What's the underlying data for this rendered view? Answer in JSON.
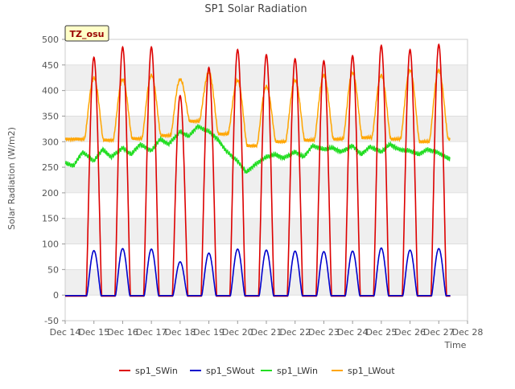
{
  "chart_data": {
    "type": "line",
    "title": "SP1 Solar Radiation",
    "xlabel": "Time",
    "ylabel": "Solar Radiation (W/m2)",
    "site_label": "TZ_osu",
    "xlim": [
      14,
      28
    ],
    "ylim": [
      -50,
      500
    ],
    "x_ticks": [
      14,
      15,
      16,
      17,
      18,
      19,
      20,
      21,
      22,
      23,
      24,
      25,
      26,
      27,
      28
    ],
    "x_tick_labels": [
      "Dec 14",
      "Dec 15",
      "Dec 16",
      "Dec 17",
      "Dec 18",
      "Dec 19",
      "Dec 20",
      "Dec 21",
      "Dec 22",
      "Dec 23",
      "Dec 24",
      "Dec 25",
      "Dec 26",
      "Dec 27",
      "Dec 28"
    ],
    "y_ticks": [
      -50,
      0,
      50,
      100,
      150,
      200,
      250,
      300,
      350,
      400,
      450,
      500
    ],
    "y_tick_labels": [
      "-50",
      "0",
      "50",
      "100",
      "150",
      "200",
      "250",
      "300",
      "350",
      "400",
      "450",
      "500"
    ],
    "grid": "horizontal bands",
    "legend_position": "bottom",
    "days": [
      15,
      16,
      17,
      18,
      19,
      20,
      21,
      22,
      23,
      24,
      25,
      26,
      27
    ],
    "series": [
      {
        "name": "sp1_SWin",
        "color": "#dd0000",
        "night_value": -2,
        "daily_peak": [
          465,
          485,
          485,
          390,
          445,
          480,
          470,
          462,
          458,
          468,
          488,
          480,
          490
        ]
      },
      {
        "name": "sp1_SWout",
        "color": "#0000cc",
        "night_value": -1,
        "daily_peak": [
          87,
          91,
          90,
          65,
          82,
          90,
          88,
          86,
          85,
          86,
          92,
          88,
          91
        ]
      },
      {
        "name": "sp1_LWin",
        "color": "#22dd22",
        "x": [
          14.0,
          14.3,
          14.6,
          15.0,
          15.3,
          15.6,
          16.0,
          16.3,
          16.6,
          17.0,
          17.3,
          17.6,
          18.0,
          18.3,
          18.6,
          19.0,
          19.3,
          19.6,
          20.0,
          20.3,
          20.6,
          21.0,
          21.3,
          21.6,
          22.0,
          22.3,
          22.6,
          23.0,
          23.3,
          23.6,
          24.0,
          24.3,
          24.6,
          25.0,
          25.3,
          25.6,
          26.0,
          26.3,
          26.6,
          27.0,
          27.3,
          27.5
        ],
        "values": [
          258,
          253,
          280,
          262,
          285,
          270,
          288,
          275,
          295,
          282,
          305,
          295,
          320,
          310,
          330,
          320,
          305,
          282,
          262,
          240,
          255,
          270,
          275,
          268,
          280,
          270,
          292,
          285,
          288,
          280,
          292,
          275,
          290,
          280,
          295,
          285,
          282,
          275,
          285,
          278,
          268,
          265
        ]
      },
      {
        "name": "sp1_LWout",
        "color": "#ffa500",
        "night_base": [
          305,
          303,
          306,
          312,
          340,
          315,
          292,
          300,
          303,
          305,
          308,
          305,
          300,
          305
        ],
        "daily_peak": [
          425,
          422,
          430,
          422,
          435,
          420,
          408,
          420,
          430,
          435,
          430,
          440,
          440
        ]
      }
    ]
  }
}
